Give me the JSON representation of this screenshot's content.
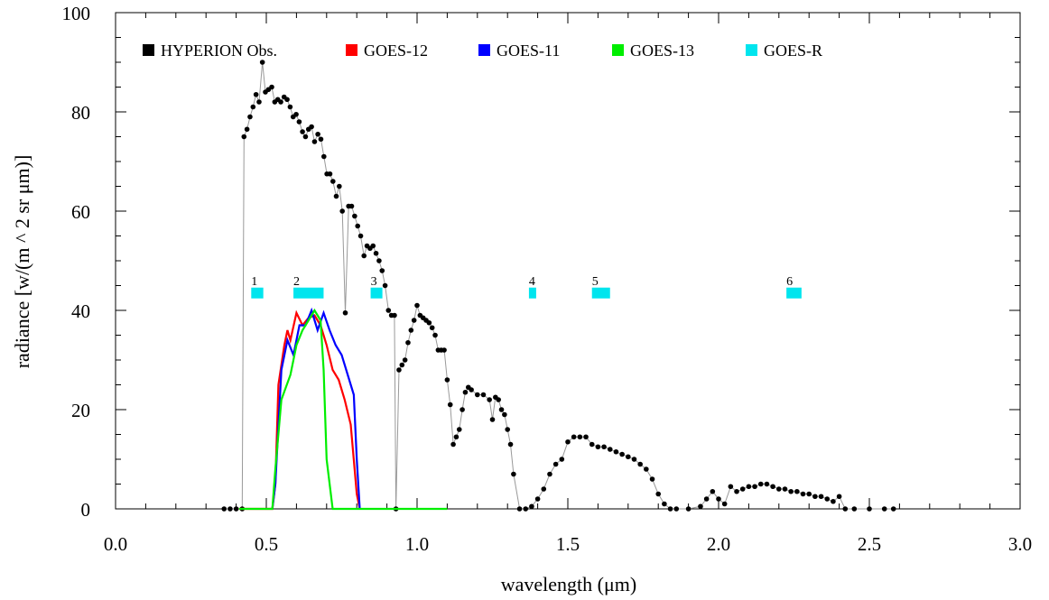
{
  "chart_data": {
    "type": "line",
    "xlabel": "wavelength (μm)",
    "ylabel": "radiance [w/(m ^ 2 sr μm)]",
    "xlim": [
      0,
      3
    ],
    "ylim": [
      0,
      100
    ],
    "xticks": [
      {
        "value": 0,
        "label": "0.0"
      },
      0.5,
      {
        "value": 1,
        "label": "1.0"
      },
      1.5,
      {
        "value": 2,
        "label": "2.0"
      },
      2.5,
      {
        "value": 3,
        "label": "3.0"
      }
    ],
    "yticks": [
      0,
      20,
      40,
      60,
      80,
      100
    ],
    "xminor": 0.1,
    "yminor": 5,
    "series": [
      {
        "name": "HYPERION Obs.",
        "color": "#000000",
        "markers": true,
        "x": [
          0.36,
          0.38,
          0.4,
          0.42,
          0.426,
          0.436,
          0.446,
          0.456,
          0.466,
          0.476,
          0.487,
          0.497,
          0.507,
          0.518,
          0.528,
          0.538,
          0.548,
          0.559,
          0.569,
          0.579,
          0.589,
          0.599,
          0.609,
          0.62,
          0.63,
          0.64,
          0.65,
          0.66,
          0.671,
          0.681,
          0.691,
          0.701,
          0.711,
          0.721,
          0.732,
          0.742,
          0.752,
          0.762,
          0.773,
          0.783,
          0.793,
          0.803,
          0.813,
          0.824,
          0.834,
          0.844,
          0.854,
          0.864,
          0.874,
          0.884,
          0.894,
          0.905,
          0.915,
          0.925,
          0.93,
          0.94,
          0.95,
          0.96,
          0.97,
          0.98,
          0.99,
          1.0,
          1.01,
          1.02,
          1.03,
          1.04,
          1.05,
          1.06,
          1.07,
          1.08,
          1.09,
          1.1,
          1.11,
          1.12,
          1.13,
          1.14,
          1.15,
          1.16,
          1.17,
          1.18,
          1.2,
          1.22,
          1.24,
          1.25,
          1.26,
          1.27,
          1.28,
          1.29,
          1.3,
          1.31,
          1.32,
          1.34,
          1.36,
          1.38,
          1.4,
          1.42,
          1.44,
          1.46,
          1.48,
          1.5,
          1.52,
          1.54,
          1.56,
          1.58,
          1.6,
          1.62,
          1.64,
          1.66,
          1.68,
          1.7,
          1.72,
          1.74,
          1.76,
          1.78,
          1.8,
          1.82,
          1.84,
          1.86,
          1.9,
          1.94,
          1.96,
          1.98,
          2.0,
          2.02,
          2.04,
          2.06,
          2.08,
          2.1,
          2.12,
          2.14,
          2.16,
          2.18,
          2.2,
          2.22,
          2.24,
          2.26,
          2.28,
          2.3,
          2.32,
          2.34,
          2.36,
          2.38,
          2.4,
          2.42,
          2.45,
          2.5,
          2.55,
          2.58
        ],
        "values": [
          0,
          0,
          0,
          0,
          75,
          76.5,
          79,
          81,
          83.5,
          82,
          90,
          84,
          84.5,
          85,
          82,
          82.5,
          82,
          83,
          82.5,
          81,
          79,
          79.5,
          78,
          76,
          75,
          76.5,
          77,
          74,
          75.5,
          74.5,
          71,
          67.5,
          67.5,
          66,
          63,
          65,
          60,
          39.5,
          61,
          61,
          59,
          57,
          55,
          51,
          53,
          52.5,
          53,
          51.5,
          50,
          48,
          45,
          40,
          39,
          39,
          0,
          28,
          29,
          30,
          33.5,
          36,
          38,
          41,
          39,
          38.5,
          38,
          37.5,
          36.5,
          35,
          32,
          32,
          32,
          26,
          21,
          13,
          14.5,
          16,
          20,
          23.5,
          24.5,
          24,
          23,
          23,
          22,
          18,
          22.5,
          22,
          20,
          19,
          16,
          13,
          7,
          0,
          0,
          0.5,
          2,
          4,
          7,
          9,
          10,
          13.5,
          14.5,
          14.5,
          14.5,
          13,
          12.5,
          12.5,
          12,
          11.5,
          11,
          10.5,
          10,
          9,
          8,
          6,
          3,
          1,
          0,
          0,
          0,
          0.5,
          2,
          3.5,
          2,
          1,
          4.5,
          3.5,
          4,
          4.5,
          4.5,
          5,
          5,
          4.5,
          4,
          4,
          3.5,
          3.5,
          3,
          3,
          2.5,
          2.5,
          2,
          1.5,
          2.5,
          0,
          0,
          0,
          0,
          0
        ]
      },
      {
        "name": "GOES-12",
        "color": "#ff0000",
        "markers": false,
        "x": [
          0.41,
          0.52,
          0.53,
          0.54,
          0.56,
          0.57,
          0.58,
          0.6,
          0.62,
          0.64,
          0.66,
          0.68,
          0.7,
          0.72,
          0.74,
          0.76,
          0.78,
          0.8,
          0.81
        ],
        "values": [
          0,
          0,
          5,
          25,
          33,
          36,
          34,
          39.5,
          37,
          38.5,
          39,
          37,
          33,
          28,
          26,
          22,
          17,
          3,
          0
        ]
      },
      {
        "name": "GOES-11",
        "color": "#0000ff",
        "markers": false,
        "x": [
          0.52,
          0.53,
          0.55,
          0.57,
          0.59,
          0.61,
          0.63,
          0.65,
          0.67,
          0.69,
          0.71,
          0.73,
          0.75,
          0.77,
          0.79,
          0.8,
          0.81
        ],
        "values": [
          0,
          5,
          28,
          34,
          31,
          37,
          37,
          40,
          36,
          39.5,
          36,
          33,
          31,
          27,
          23,
          10,
          0
        ]
      },
      {
        "name": "GOES-13",
        "color": "#00ee00",
        "markers": false,
        "x": [
          0.41,
          0.52,
          0.53,
          0.55,
          0.58,
          0.6,
          0.62,
          0.64,
          0.66,
          0.68,
          0.69,
          0.7,
          0.72,
          1.1
        ],
        "values": [
          0,
          0,
          8,
          22,
          27,
          33,
          36,
          38,
          40,
          38,
          28,
          10,
          0,
          0
        ]
      }
    ],
    "bands": {
      "name": "GOES-R",
      "color": "#00e5ee",
      "level": 43.5,
      "items": [
        {
          "label": "1",
          "range": [
            0.45,
            0.49
          ]
        },
        {
          "label": "2",
          "range": [
            0.59,
            0.69
          ]
        },
        {
          "label": "3",
          "range": [
            0.846,
            0.885
          ]
        },
        {
          "label": "4",
          "range": [
            1.371,
            1.386
          ]
        },
        {
          "label": "5",
          "range": [
            1.58,
            1.64
          ]
        },
        {
          "label": "6",
          "range": [
            2.225,
            2.275
          ]
        }
      ]
    }
  }
}
